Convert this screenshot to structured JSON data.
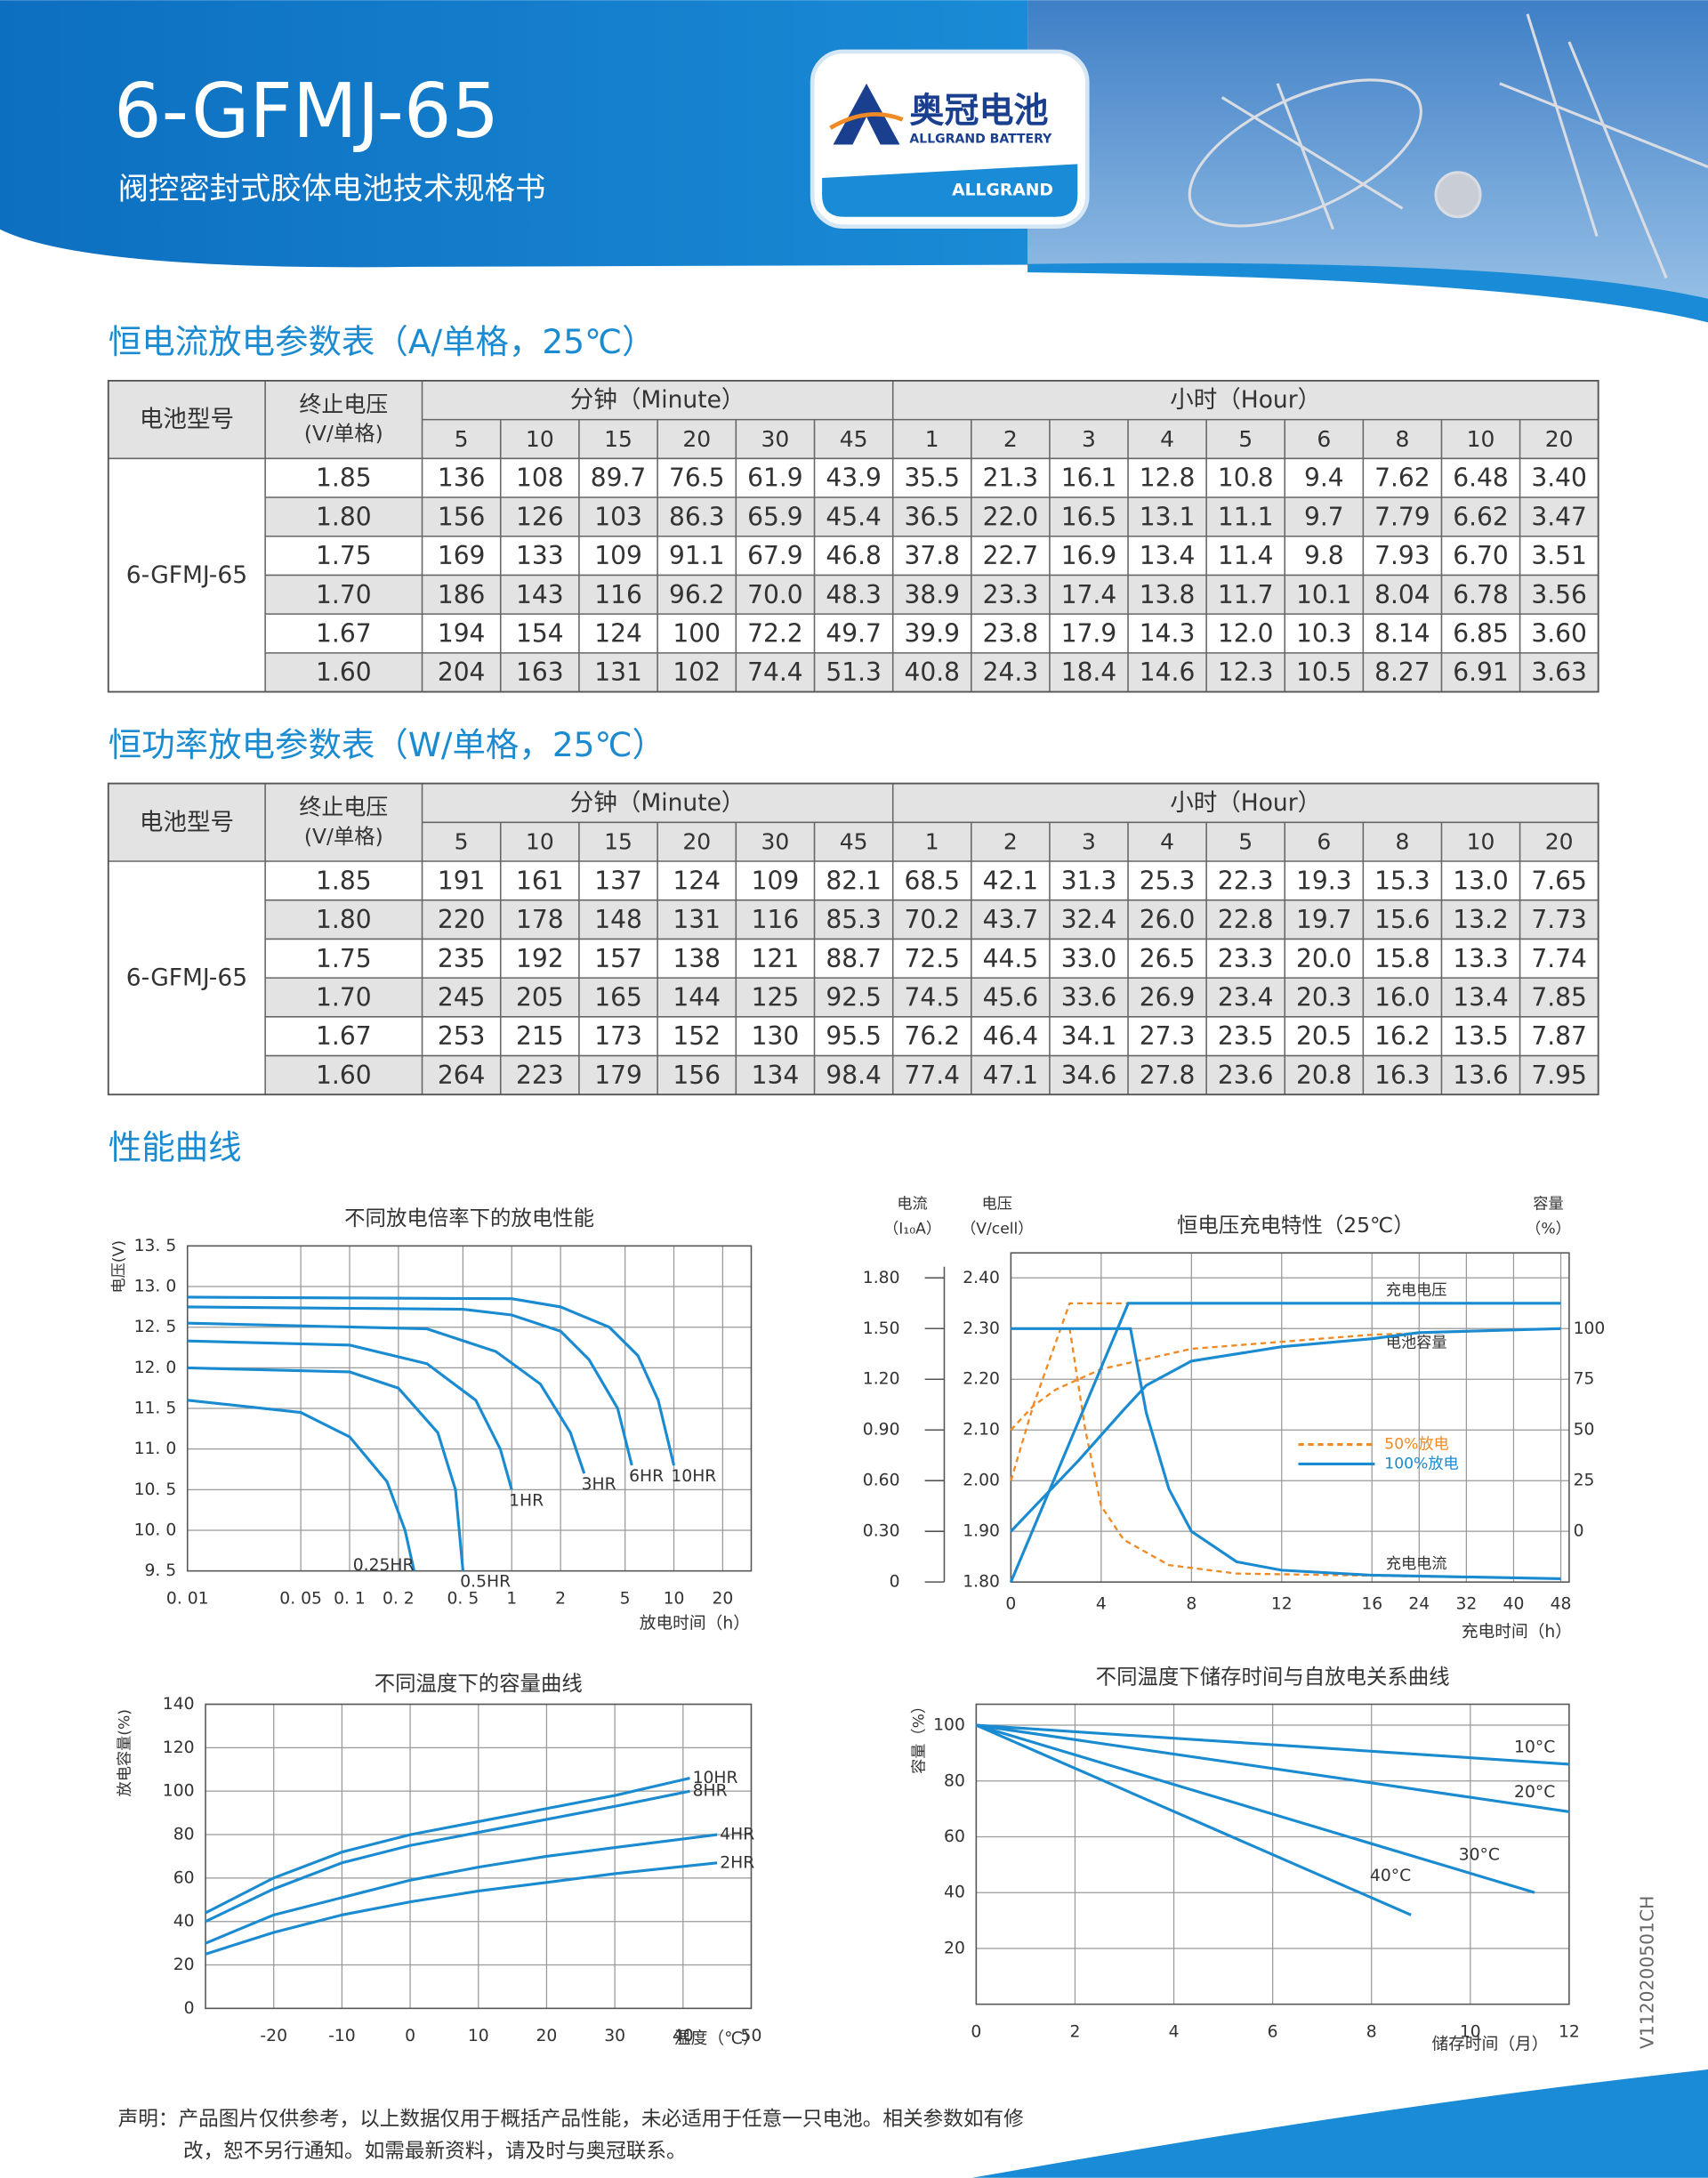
{
  "header": {
    "title": "6-GFMJ-65",
    "subtitle": "阀控密封式胶体电池技术规格书",
    "logo_cn": "奥冠电池",
    "logo_en": "ALLGRAND BATTERY",
    "logo_brand": "ALLGRAND"
  },
  "tables": [
    {
      "title": "恒电流放电参数表（A/单格，25℃）",
      "headers": {
        "model": "电池型号",
        "voltage": [
          "终止电压",
          "(V/单格)"
        ],
        "minute": "分钟（Minute）",
        "hour": "小时（Hour）"
      },
      "minute_cols": [
        5,
        10,
        15,
        20,
        30,
        45
      ],
      "hour_cols": [
        1,
        2,
        3,
        4,
        5,
        6,
        8,
        10,
        20
      ],
      "model": "6-GFMJ-65",
      "rows": [
        {
          "voltage": "1.85",
          "values": [
            "136",
            "108",
            "89.7",
            "76.5",
            "61.9",
            "43.9",
            "35.5",
            "21.3",
            "16.1",
            "12.8",
            "10.8",
            "9.4",
            "7.62",
            "6.48",
            "3.40"
          ]
        },
        {
          "voltage": "1.80",
          "values": [
            "156",
            "126",
            "103",
            "86.3",
            "65.9",
            "45.4",
            "36.5",
            "22.0",
            "16.5",
            "13.1",
            "11.1",
            "9.7",
            "7.79",
            "6.62",
            "3.47"
          ]
        },
        {
          "voltage": "1.75",
          "values": [
            "169",
            "133",
            "109",
            "91.1",
            "67.9",
            "46.8",
            "37.8",
            "22.7",
            "16.9",
            "13.4",
            "11.4",
            "9.8",
            "7.93",
            "6.70",
            "3.51"
          ]
        },
        {
          "voltage": "1.70",
          "values": [
            "186",
            "143",
            "116",
            "96.2",
            "70.0",
            "48.3",
            "38.9",
            "23.3",
            "17.4",
            "13.8",
            "11.7",
            "10.1",
            "8.04",
            "6.78",
            "3.56"
          ]
        },
        {
          "voltage": "1.67",
          "values": [
            "194",
            "154",
            "124",
            "100",
            "72.2",
            "49.7",
            "39.9",
            "23.8",
            "17.9",
            "14.3",
            "12.0",
            "10.3",
            "8.14",
            "6.85",
            "3.60"
          ]
        },
        {
          "voltage": "1.60",
          "values": [
            "204",
            "163",
            "131",
            "102",
            "74.4",
            "51.3",
            "40.8",
            "24.3",
            "18.4",
            "14.6",
            "12.3",
            "10.5",
            "8.27",
            "6.91",
            "3.63"
          ]
        }
      ]
    },
    {
      "title": "恒功率放电参数表（W/单格，25℃）",
      "headers": {
        "model": "电池型号",
        "voltage": [
          "终止电压",
          "(V/单格)"
        ],
        "minute": "分钟（Minute）",
        "hour": "小时（Hour）"
      },
      "minute_cols": [
        5,
        10,
        15,
        20,
        30,
        45
      ],
      "hour_cols": [
        1,
        2,
        3,
        4,
        5,
        6,
        8,
        10,
        20
      ],
      "model": "6-GFMJ-65",
      "rows": [
        {
          "voltage": "1.85",
          "values": [
            "191",
            "161",
            "137",
            "124",
            "109",
            "82.1",
            "68.5",
            "42.1",
            "31.3",
            "25.3",
            "22.3",
            "19.3",
            "15.3",
            "13.0",
            "7.65"
          ]
        },
        {
          "voltage": "1.80",
          "values": [
            "220",
            "178",
            "148",
            "131",
            "116",
            "85.3",
            "70.2",
            "43.7",
            "32.4",
            "26.0",
            "22.8",
            "19.7",
            "15.6",
            "13.2",
            "7.73"
          ]
        },
        {
          "voltage": "1.75",
          "values": [
            "235",
            "192",
            "157",
            "138",
            "121",
            "88.7",
            "72.5",
            "44.5",
            "33.0",
            "26.5",
            "23.3",
            "20.0",
            "15.8",
            "13.3",
            "7.74"
          ]
        },
        {
          "voltage": "1.70",
          "values": [
            "245",
            "205",
            "165",
            "144",
            "125",
            "92.5",
            "74.5",
            "45.6",
            "33.6",
            "26.9",
            "23.4",
            "20.3",
            "16.0",
            "13.4",
            "7.85"
          ]
        },
        {
          "voltage": "1.67",
          "values": [
            "253",
            "215",
            "173",
            "152",
            "130",
            "95.5",
            "76.2",
            "46.4",
            "34.1",
            "27.3",
            "23.5",
            "20.5",
            "16.2",
            "13.5",
            "7.87"
          ]
        },
        {
          "voltage": "1.60",
          "values": [
            "264",
            "223",
            "179",
            "156",
            "134",
            "98.4",
            "77.4",
            "47.1",
            "34.6",
            "27.8",
            "23.6",
            "20.8",
            "16.3",
            "13.6",
            "7.95"
          ]
        }
      ]
    }
  ],
  "section_title": "性能曲线",
  "charts": [
    {
      "type": "line",
      "title": "不同放电倍率下的放电性能",
      "ylabel": "电压(V)",
      "xlabel": "放电时间（h）",
      "xscale": "log",
      "grid": true,
      "color": "#1a8bd0",
      "xlim": [
        0.01,
        30
      ],
      "ylim": [
        9.5,
        13.5
      ],
      "xticks": [
        {
          "value": 0.01,
          "label": "0. 01"
        },
        {
          "value": 0.05,
          "label": "0. 05"
        },
        {
          "value": 0.1,
          "label": "0. 1"
        },
        {
          "value": 0.2,
          "label": "0. 2"
        },
        {
          "value": 0.5,
          "label": "0. 5"
        },
        1,
        2,
        5,
        10,
        20
      ],
      "yticks": [
        {
          "value": 13.5,
          "label": "13. 5"
        },
        {
          "value": 13,
          "label": "13. 0"
        },
        {
          "value": 12.5,
          "label": "12. 5"
        },
        {
          "value": 12,
          "label": "12. 0"
        },
        {
          "value": 11.5,
          "label": "11. 5"
        },
        {
          "value": 11,
          "label": "11. 0"
        },
        {
          "value": 10.5,
          "label": "10. 5"
        },
        {
          "value": 10,
          "label": "10. 0"
        },
        {
          "value": 9.5,
          "label": "9. 5"
        }
      ],
      "series": [
        {
          "name": "10HR",
          "x": [
            0.01,
            1,
            2,
            4,
            6,
            8,
            10
          ],
          "values": [
            12.87,
            12.85,
            12.75,
            12.5,
            12.15,
            11.6,
            10.8
          ]
        },
        {
          "name": "6HR",
          "x": [
            0.01,
            0.5,
            1,
            2,
            3,
            4.5,
            5.5
          ],
          "values": [
            12.75,
            12.72,
            12.65,
            12.45,
            12.1,
            11.5,
            10.8
          ]
        },
        {
          "name": "3HR",
          "x": [
            0.01,
            0.3,
            0.8,
            1.5,
            2.3,
            2.8
          ],
          "values": [
            12.55,
            12.48,
            12.2,
            11.8,
            11.2,
            10.7
          ]
        },
        {
          "name": "1HR",
          "x": [
            0.01,
            0.1,
            0.3,
            0.6,
            0.85,
            1
          ],
          "values": [
            12.33,
            12.28,
            12.05,
            11.6,
            11.0,
            10.5
          ]
        },
        {
          "name": "0.5HR",
          "x": [
            0.01,
            0.1,
            0.2,
            0.35,
            0.45,
            0.5
          ],
          "values": [
            12.0,
            11.95,
            11.75,
            11.2,
            10.5,
            9.5
          ]
        },
        {
          "name": "0.25HR",
          "x": [
            0.01,
            0.05,
            0.1,
            0.17,
            0.22,
            0.25
          ],
          "values": [
            11.6,
            11.45,
            11.15,
            10.6,
            10.0,
            9.5
          ]
        }
      ]
    },
    {
      "type": "charge",
      "title": "恒电压充电特性（25℃）",
      "current_label": [
        "电流",
        "（I₁₀A）"
      ],
      "voltage_label": [
        "电压",
        "（V/cell）"
      ],
      "capacity_label": [
        "容量",
        "（%）"
      ],
      "xlabel": "充电时间（h）",
      "grid": true,
      "xlim": [
        0,
        48
      ],
      "xticks": [
        0,
        4,
        8,
        12,
        16,
        24,
        32,
        40,
        48
      ],
      "ylim": [
        1.8,
        2.4
      ],
      "yticks": [
        {
          "value": 2.4,
          "label": "2.40"
        },
        {
          "value": 2.3,
          "label": "2.30"
        },
        {
          "value": 2.2,
          "label": "2.20"
        },
        {
          "value": 2.1,
          "label": "2.10"
        },
        {
          "value": 2.0,
          "label": "2.00"
        },
        {
          "value": 1.9,
          "label": "1.90"
        },
        {
          "value": 1.8,
          "label": "1.80"
        }
      ],
      "current_lim": [
        0,
        1.8
      ],
      "current_ticks": [
        {
          "value": 1.8,
          "label": "1.80"
        },
        {
          "value": 1.5,
          "label": "1.50"
        },
        {
          "value": 1.2,
          "label": "1.20"
        },
        {
          "value": 0.9,
          "label": "0.90"
        },
        {
          "value": 0.6,
          "label": "0.60"
        },
        {
          "value": 0.3,
          "label": "0.30"
        },
        0
      ],
      "y2lim": [
        -25,
        125
      ],
      "y2ticks": [
        100,
        75,
        50,
        25,
        0
      ],
      "annotations": [
        "充电电压",
        "电池容量",
        "充电电流"
      ],
      "series": [
        {
          "name": "50%放电",
          "color": "#f08a24",
          "dash": true,
          "voltage": {
            "x": [
              0,
              1,
              2.6,
              48
            ],
            "values": [
              2.0,
              2.15,
              2.35,
              2.35
            ]
          },
          "current": {
            "x": [
              0,
              2.6,
              3.3,
              4,
              5,
              7,
              10,
              48
            ],
            "values": [
              1.5,
              1.5,
              0.9,
              0.45,
              0.25,
              0.1,
              0.05,
              0.02
            ]
          },
          "capacity": {
            "x": [
              0,
              1,
              2,
              4,
              8,
              16,
              48
            ],
            "values": [
              50,
              62,
              70,
              80,
              90,
              97,
              100
            ]
          }
        },
        {
          "name": "100%放电",
          "color": "#1a8bd0",
          "dash": false,
          "voltage": {
            "x": [
              0,
              5.2,
              48
            ],
            "values": [
              1.8,
              2.35,
              2.35
            ]
          },
          "current": {
            "x": [
              0,
              5.3,
              6,
              7,
              8,
              10,
              12,
              16,
              48
            ],
            "values": [
              1.5,
              1.5,
              1.0,
              0.55,
              0.3,
              0.12,
              0.07,
              0.04,
              0.02
            ]
          },
          "capacity": {
            "x": [
              0,
              3,
              5,
              6,
              8,
              12,
              16,
              24,
              48
            ],
            "values": [
              0,
              35,
              60,
              72,
              84,
              91,
              95,
              98,
              100
            ]
          }
        }
      ]
    },
    {
      "type": "line",
      "title": "不同温度下的容量曲线",
      "ylabel": "放电容量(%)",
      "xlabel": "温度（℃）",
      "grid": true,
      "color": "#1a8bd0",
      "xlim": [
        -30,
        50
      ],
      "ylim": [
        0,
        140
      ],
      "xticks": [
        -20,
        -10,
        0,
        10,
        20,
        30,
        40,
        50
      ],
      "yticks": [
        0,
        20,
        40,
        60,
        80,
        100,
        120,
        140
      ],
      "series": [
        {
          "name": "10HR",
          "x": [
            -30,
            -20,
            -10,
            0,
            10,
            20,
            30,
            41
          ],
          "values": [
            44,
            60,
            72,
            80,
            86,
            92,
            98,
            106
          ]
        },
        {
          "name": "8HR",
          "x": [
            -30,
            -20,
            -10,
            0,
            10,
            20,
            30,
            41
          ],
          "values": [
            40,
            55,
            67,
            75,
            81,
            87,
            93,
            100
          ]
        },
        {
          "name": "4HR",
          "x": [
            -30,
            -20,
            -10,
            0,
            10,
            20,
            30,
            45
          ],
          "values": [
            30,
            43,
            51,
            59,
            65,
            70,
            74,
            80
          ]
        },
        {
          "name": "2HR",
          "x": [
            -30,
            -20,
            -10,
            0,
            10,
            20,
            30,
            45
          ],
          "values": [
            25,
            35,
            43,
            49,
            54,
            58,
            62,
            67
          ]
        }
      ]
    },
    {
      "type": "line",
      "title": "不同温度下储存时间与自放电关系曲线",
      "ylabel": "容量（%）",
      "xlabel": "储存时间（月）",
      "grid": true,
      "color": "#1a8bd0",
      "xlim": [
        0,
        12
      ],
      "ylim": [
        0,
        107.5
      ],
      "xticks": [
        0,
        2,
        4,
        6,
        8,
        10,
        12
      ],
      "yticks": [
        20,
        40,
        60,
        80,
        100
      ],
      "series": [
        {
          "name": "10°C",
          "x": [
            0,
            12
          ],
          "values": [
            100,
            86
          ]
        },
        {
          "name": "20°C",
          "x": [
            0,
            12
          ],
          "values": [
            100,
            69
          ]
        },
        {
          "name": "30°C",
          "x": [
            0,
            11.3
          ],
          "values": [
            100,
            40
          ]
        },
        {
          "name": "40°C",
          "x": [
            0,
            8.8
          ],
          "values": [
            100,
            32
          ]
        }
      ]
    }
  ],
  "footer": {
    "lines": [
      "声明：产品图片仅供参考，以上数据仅用于概括产品性能，未必适用于任意一只电池。相关参数如有修",
      "改，恕不另行通知。如需最新资料，请及时与奥冠联系。"
    ],
    "code": "V1120200501CH"
  }
}
